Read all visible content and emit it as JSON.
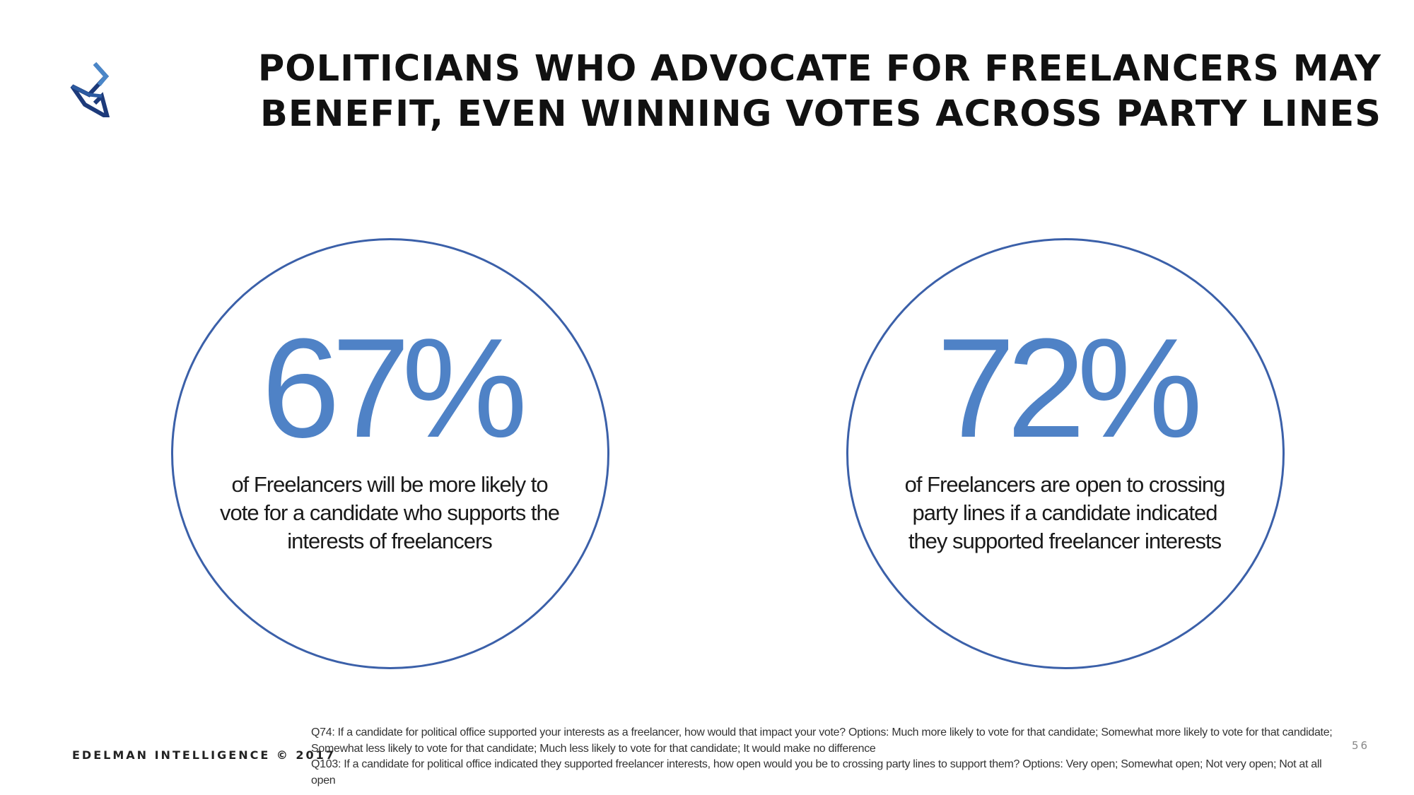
{
  "header": {
    "title_lines": [
      "POLITICIANS WHO ADVOCATE FOR FREELANCERS MAY",
      "BENEFIT, EVEN WINNING VOTES ACROSS PARTY LINES"
    ],
    "logo_icon": "edelman-intelligence-logo-icon"
  },
  "stats": [
    {
      "value": "67%",
      "description_lines": [
        "of Freelancers will be more likely to",
        "vote for a candidate who supports the",
        "interests of freelancers"
      ]
    },
    {
      "value": "72%",
      "description_lines": [
        "of Freelancers are open to crossing",
        "party lines if a candidate indicated",
        "they supported freelancer interests"
      ]
    }
  ],
  "footer": {
    "brand": "EDELMAN INTELLIGENCE © 2017",
    "page_number": "56",
    "notes": [
      "Q74: If a candidate for political office supported your interests as a freelancer, how would that impact your vote? Options:  Much more likely to vote for that candidate; Somewhat more likely to vote for that candidate; Somewhat less likely to vote for that candidate; Much less likely to vote for that candidate; It would make no difference",
      "Q103: If a candidate for political office indicated they supported freelancer interests, how open would you be to crossing party lines to support them? Options: Very open; Somewhat open; Not very open; Not at all open"
    ]
  },
  "colors": {
    "accent_blue": "#4f82c6",
    "circle_border": "#3b60a9",
    "logo_dark": "#1d3a7a",
    "logo_light": "#4a86c8"
  }
}
